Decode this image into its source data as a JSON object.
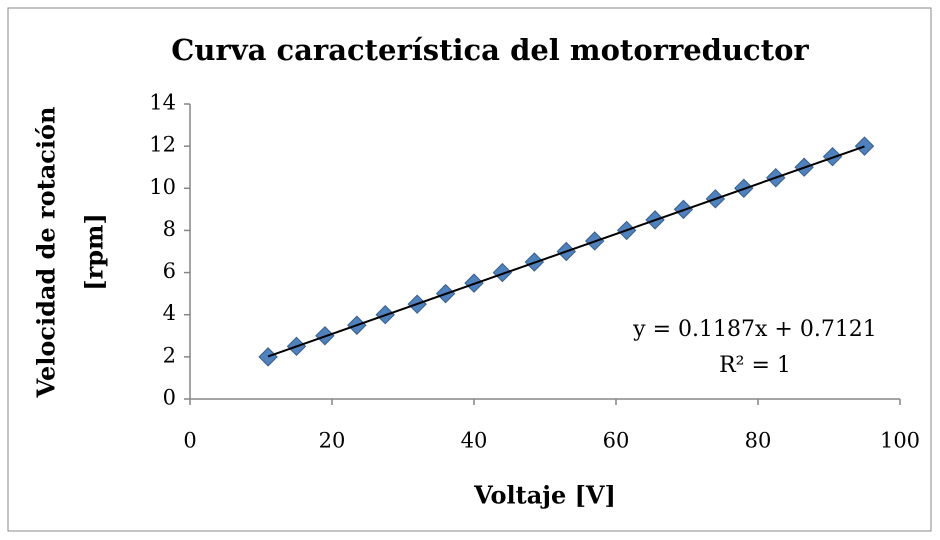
{
  "chart_data": {
    "type": "scatter",
    "title": "Curva característica del motorreductor",
    "xlabel": "Voltaje [V]",
    "ylabel": [
      "Velocidad de rotación",
      "[rpm]"
    ],
    "series": [
      {
        "color": "#4f81bd",
        "x": [
          11,
          15,
          19,
          23.5,
          27.5,
          32,
          36,
          40,
          44,
          48.5,
          53,
          57,
          61.5,
          65.5,
          69.5,
          74,
          78,
          82.5,
          86.5,
          90.5,
          95
        ],
        "values": [
          2,
          2.5,
          3,
          3.5,
          4,
          4.5,
          5,
          5.5,
          6,
          6.5,
          7,
          7.5,
          8,
          8.5,
          9,
          9.5,
          10,
          10.5,
          11,
          11.5,
          12
        ]
      }
    ],
    "trendline": {
      "slope": 0.1187,
      "intercept": 0.7121,
      "color": "#000000",
      "equation": "y = 0.1187x + 0.7121",
      "r2": "R² = 1"
    },
    "xlim": [
      0,
      100
    ],
    "xticks": [
      0,
      20,
      40,
      60,
      80,
      100
    ],
    "ylim": [
      0,
      14
    ],
    "yticks": [
      0,
      2,
      4,
      6,
      8,
      10,
      12,
      14
    ],
    "grid": false
  }
}
